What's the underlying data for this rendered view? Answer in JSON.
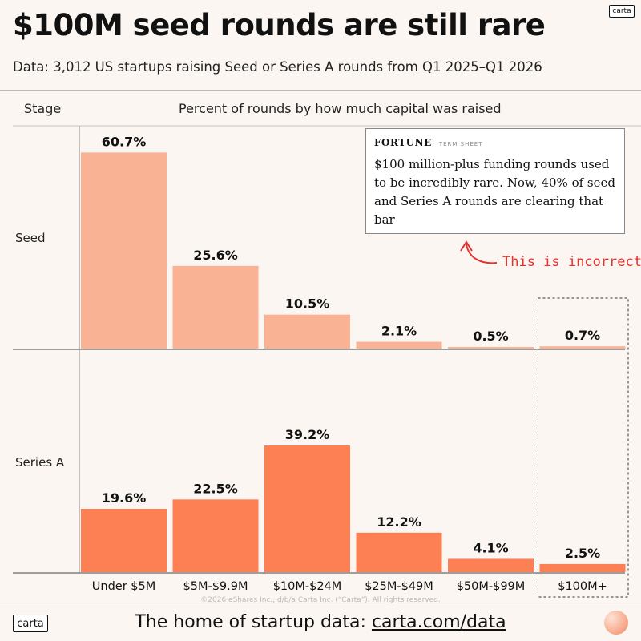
{
  "header": {
    "title": "$100M seed rounds are still rare",
    "subtitle": "Data: 3,012 US startups raising Seed or Series A rounds from Q1 2025–Q1 2026",
    "logo": "carta"
  },
  "table_header": {
    "stage_label": "Stage",
    "columns_label": "Percent of rounds by how much capital was raised"
  },
  "chart_data": {
    "type": "bar",
    "categories": [
      "Under $5M",
      "$5M-$9.9M",
      "$10M-$24M",
      "$25M-$49M",
      "$50M-$99M",
      "$100M+"
    ],
    "series": [
      {
        "name": "Seed",
        "values": [
          60.7,
          25.6,
          10.5,
          2.1,
          0.5,
          0.7
        ],
        "labels": [
          "60.7%",
          "25.6%",
          "10.5%",
          "2.1%",
          "0.5%",
          "0.7%"
        ],
        "color": "#f9b394"
      },
      {
        "name": "Series A",
        "values": [
          19.6,
          22.5,
          39.2,
          12.2,
          4.1,
          2.5
        ],
        "labels": [
          "19.6%",
          "22.5%",
          "39.2%",
          "12.2%",
          "4.1%",
          "2.5%"
        ],
        "color": "#fd7f54"
      }
    ],
    "highlight_category": "$100M+"
  },
  "callout": {
    "brand": "FORTUNE",
    "brand_sub": "TERM SHEET",
    "quote": "$100 million-plus funding rounds used to be incredibly rare. Now, 40% of seed and Series A rounds are clearing that bar",
    "annotation": "This is incorrect",
    "annotation_color": "#e6312d"
  },
  "footer": {
    "copyright": "©2026 eShares Inc., d/b/a Carta Inc. (“Carta”). All rights reserved.",
    "text": "The home of startup data: ",
    "link": "carta.com/data",
    "logo": "carta"
  }
}
